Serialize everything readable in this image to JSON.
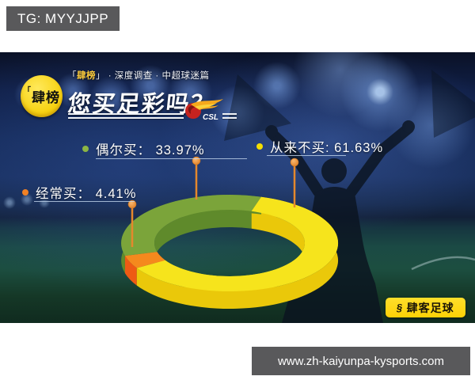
{
  "overlay": {
    "tg_badge": "TG: MYYJJPP",
    "url_bar": "www.zh-kaiyunpa-kysports.com"
  },
  "header": {
    "badge_bracket": "「",
    "badge_text": "肆榜",
    "series_open": "「",
    "series_brand": "肆榜",
    "series_close": "」",
    "series_rest": "· 深度调查 · 中超球迷篇",
    "title": "您买足彩吗？",
    "csl_text": "CSL"
  },
  "footer_badge": {
    "glyph": "§",
    "label": "肆客足球"
  },
  "chart_data": {
    "type": "pie",
    "subtype": "3d-donut",
    "question": "您买足彩吗？",
    "start_angle_deg": 73,
    "direction": "counterclockwise",
    "legend_position": "callout-pins",
    "pin_color": "#e5882c",
    "segments": [
      {
        "label": "偶尔买",
        "value": 33.97,
        "callout": "偶尔买：  33.97%",
        "top_color": "#7ba43a",
        "side_color": "#5f8a2b",
        "bullet_color": "#8cb544"
      },
      {
        "label": "经常买",
        "value": 4.41,
        "callout": "经常买：  4.41%",
        "top_color": "#f5891d",
        "side_color": "#ee5a14",
        "bullet_color": "#f08125"
      },
      {
        "label": "从来不买",
        "value": 61.63,
        "callout": "从来不买: 61.63%",
        "top_color": "#f6e41c",
        "side_color": "#eac80a",
        "bullet_color": "#f4de00"
      }
    ]
  }
}
